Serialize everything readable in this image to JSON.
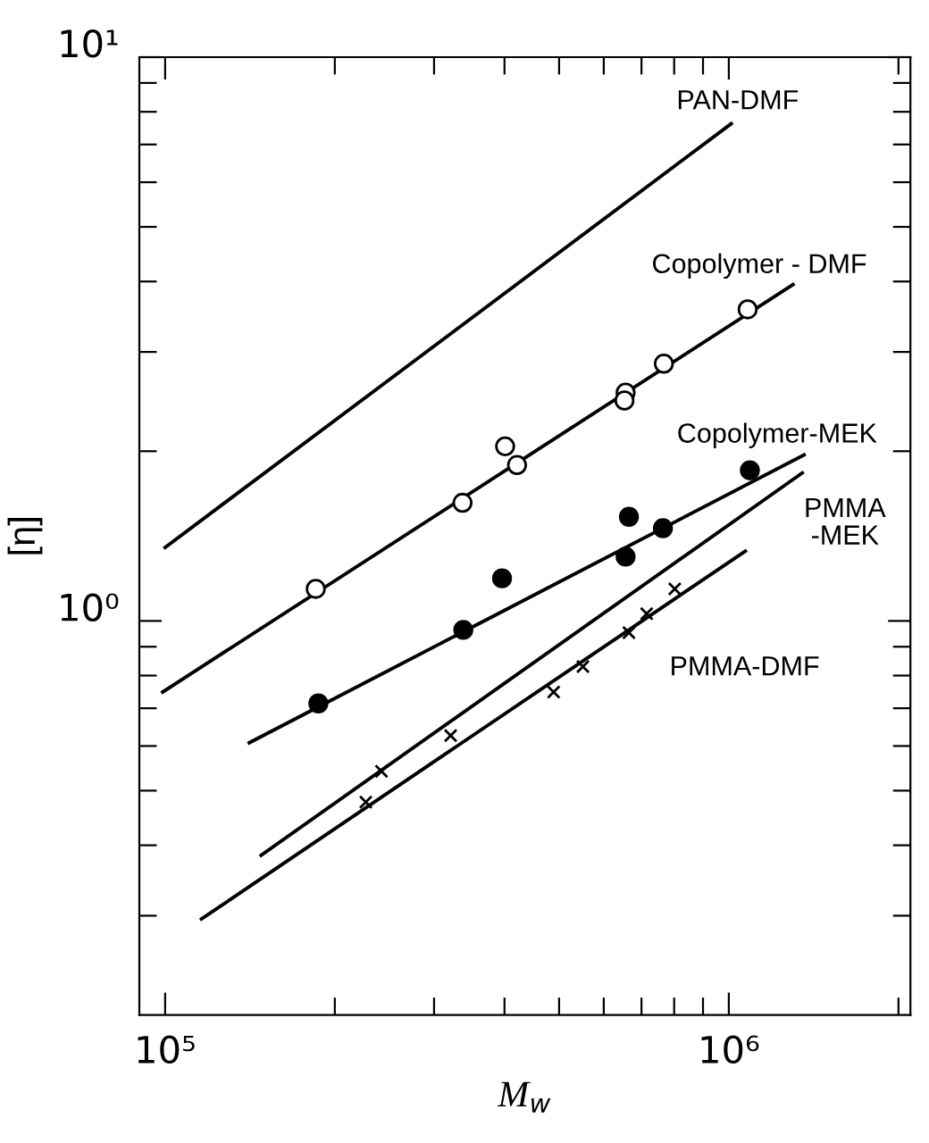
{
  "chart_data": {
    "type": "line",
    "xlabel": "M$_{w}$",
    "ylabel": "[η]",
    "log": "xy",
    "xlim": [
      90000,
      2100000
    ],
    "ylim": [
      0.2,
      10
    ],
    "xticks": [
      {
        "value": 100000,
        "label": "10⁵"
      },
      {
        "value": 200000,
        "label": null
      },
      {
        "value": 300000,
        "label": null
      },
      {
        "value": 400000,
        "label": null
      },
      {
        "value": 500000,
        "label": null
      },
      {
        "value": 600000,
        "label": null
      },
      {
        "value": 700000,
        "label": null
      },
      {
        "value": 800000,
        "label": null
      },
      {
        "value": 900000,
        "label": null
      },
      {
        "value": 1000000,
        "label": "10⁶"
      },
      {
        "value": 2000000,
        "label": null
      }
    ],
    "yticks": [
      {
        "value": 0.3,
        "label": null
      },
      {
        "value": 0.4,
        "label": null
      },
      {
        "value": 0.5,
        "label": null
      },
      {
        "value": 0.6,
        "label": null
      },
      {
        "value": 0.7,
        "label": null
      },
      {
        "value": 0.8,
        "label": null
      },
      {
        "value": 0.9,
        "label": null
      },
      {
        "value": 1,
        "label": "10⁰"
      },
      {
        "value": 2,
        "label": null
      },
      {
        "value": 3,
        "label": null
      },
      {
        "value": 4,
        "label": null
      },
      {
        "value": 5,
        "label": null
      },
      {
        "value": 6,
        "label": null
      },
      {
        "value": 7,
        "label": null
      },
      {
        "value": 8,
        "label": null
      },
      {
        "value": 9,
        "label": null
      },
      {
        "value": 10,
        "label": "10¹"
      }
    ],
    "grid": false,
    "legend": false,
    "series": [
      {
        "color": "#000000",
        "x": [
          100000,
          1010000
        ],
        "values": [
          1.35,
          7.62
        ]
      },
      {
        "color": "#000000",
        "x": [
          99000,
          1300000
        ],
        "values": [
          0.748,
          3.95
        ]
      },
      {
        "type": "scatter",
        "marker": "circle",
        "color": "#ffffff",
        "x": [
          185000,
          337000,
          401000,
          421000,
          656000,
          653000,
          767000,
          1080000
        ],
        "values": [
          1.14,
          1.62,
          2.04,
          1.89,
          2.54,
          2.46,
          2.86,
          3.57
        ]
      },
      {
        "color": "#000000",
        "x": [
          141000,
          1360000
        ],
        "values": [
          0.608,
          1.97
        ]
      },
      {
        "type": "scatter",
        "marker": "circle",
        "color": "#000000",
        "x": [
          187000,
          338000,
          396000,
          656000,
          665000,
          764000,
          1090000
        ],
        "values": [
          0.714,
          0.964,
          1.19,
          1.3,
          1.53,
          1.46,
          1.85
        ]
      },
      {
        "color": "#000000",
        "x": [
          148000,
          1350000
        ],
        "values": [
          0.384,
          1.83
        ]
      },
      {
        "type": "scatter",
        "marker": "cross",
        "color": "#000000",
        "x": [
          242000,
          321000
        ],
        "values": [
          0.541,
          0.626
        ]
      },
      {
        "color": "#000000",
        "x": [
          116000,
          1070000
        ],
        "values": [
          0.296,
          1.33
        ]
      },
      {
        "type": "scatter",
        "marker": "cross",
        "color": "#000000",
        "x": [
          227000,
          489000,
          551000,
          665000,
          715000,
          802000
        ],
        "values": [
          0.477,
          0.748,
          0.83,
          0.953,
          1.03,
          1.14
        ]
      }
    ],
    "annotations": [
      "PAN-DMF",
      "Copolymer - DMF",
      "Copolymer-MEK",
      "PMMA\n-MEK",
      "PMMA-DMF"
    ]
  }
}
